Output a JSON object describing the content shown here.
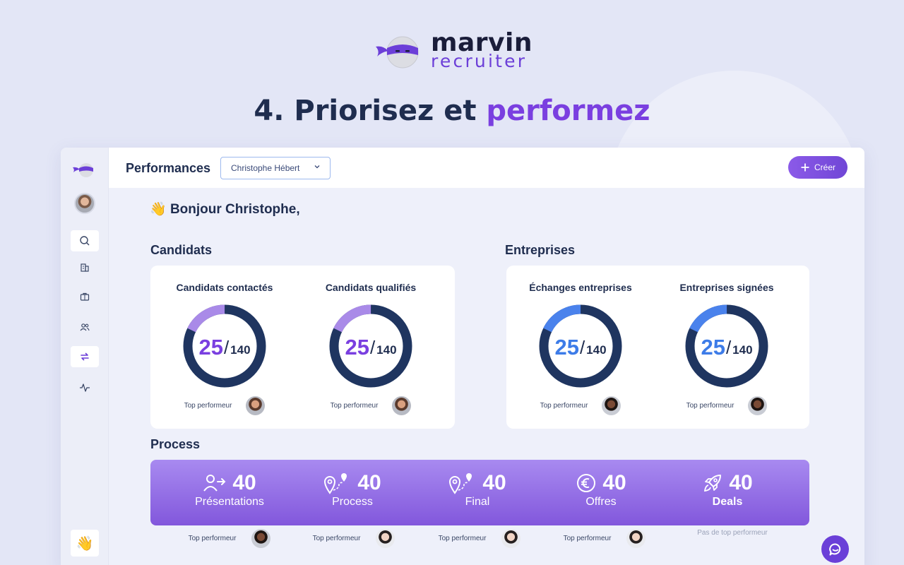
{
  "brand": {
    "word1": "marvin",
    "word2": "recruiter",
    "accent_color": "#7a3fe0",
    "dark_color": "#1f2d4f"
  },
  "headline": {
    "prefix": "4. Priorisez et",
    "accent": "performez"
  },
  "topbar": {
    "title": "Performances",
    "selected_user": "Christophe Hébert",
    "create_label": "Créer"
  },
  "sidebar": {
    "items": [
      {
        "icon": "search-icon"
      },
      {
        "icon": "building-icon"
      },
      {
        "icon": "briefcase-icon"
      },
      {
        "icon": "users-icon"
      },
      {
        "icon": "swap-icon",
        "active": true
      },
      {
        "icon": "activity-icon"
      }
    ],
    "bottom_emoji": "👋"
  },
  "greeting": {
    "emoji": "👋",
    "text": "Bonjour Christophe,"
  },
  "candidats": {
    "title": "Candidats",
    "metrics": [
      {
        "label": "Candidats contactés",
        "value": "25",
        "total": "140",
        "progress": 0.1786,
        "color": "#7a3fe0",
        "arc_color": "#a98ae8",
        "top_label": "Top performeur",
        "avatar": "mid"
      },
      {
        "label": "Candidats qualifiés",
        "value": "25",
        "total": "140",
        "progress": 0.1786,
        "color": "#7a3fe0",
        "arc_color": "#a98ae8",
        "top_label": "Top performeur",
        "avatar": "mid"
      }
    ]
  },
  "entreprises": {
    "title": "Entreprises",
    "metrics": [
      {
        "label": "Échanges entreprises",
        "value": "25",
        "total": "140",
        "progress": 0.1786,
        "color": "#3d7ce8",
        "arc_color": "#4a82ec",
        "top_label": "Top performeur",
        "avatar": "dark"
      },
      {
        "label": "Entreprises signées",
        "value": "25",
        "total": "140",
        "progress": 0.1786,
        "color": "#3d7ce8",
        "arc_color": "#4a82ec",
        "top_label": "Top performeur",
        "avatar": "dark"
      }
    ]
  },
  "process": {
    "title": "Process",
    "items": [
      {
        "icon": "user-arrow-icon",
        "value": "40",
        "label": "Présentations",
        "top_label": "Top performeur",
        "avatar": "dark"
      },
      {
        "icon": "route-pin-icon",
        "value": "40",
        "label": "Process",
        "top_label": "Top performeur",
        "avatar": "light"
      },
      {
        "icon": "route-pin-icon",
        "value": "40",
        "label": "Final",
        "top_label": "Top performeur",
        "avatar": "light"
      },
      {
        "icon": "euro-icon",
        "value": "40",
        "label": "Offres",
        "top_label": "Top performeur",
        "avatar": "light"
      },
      {
        "icon": "rocket-icon",
        "value": "40",
        "label": "Deals",
        "top_label": "Pas de top performeur",
        "avatar": "none"
      }
    ]
  },
  "colors": {
    "donut_track": "#1f3560",
    "process_gradient_top": "#a88af0",
    "process_gradient_bottom": "#8257dc"
  }
}
